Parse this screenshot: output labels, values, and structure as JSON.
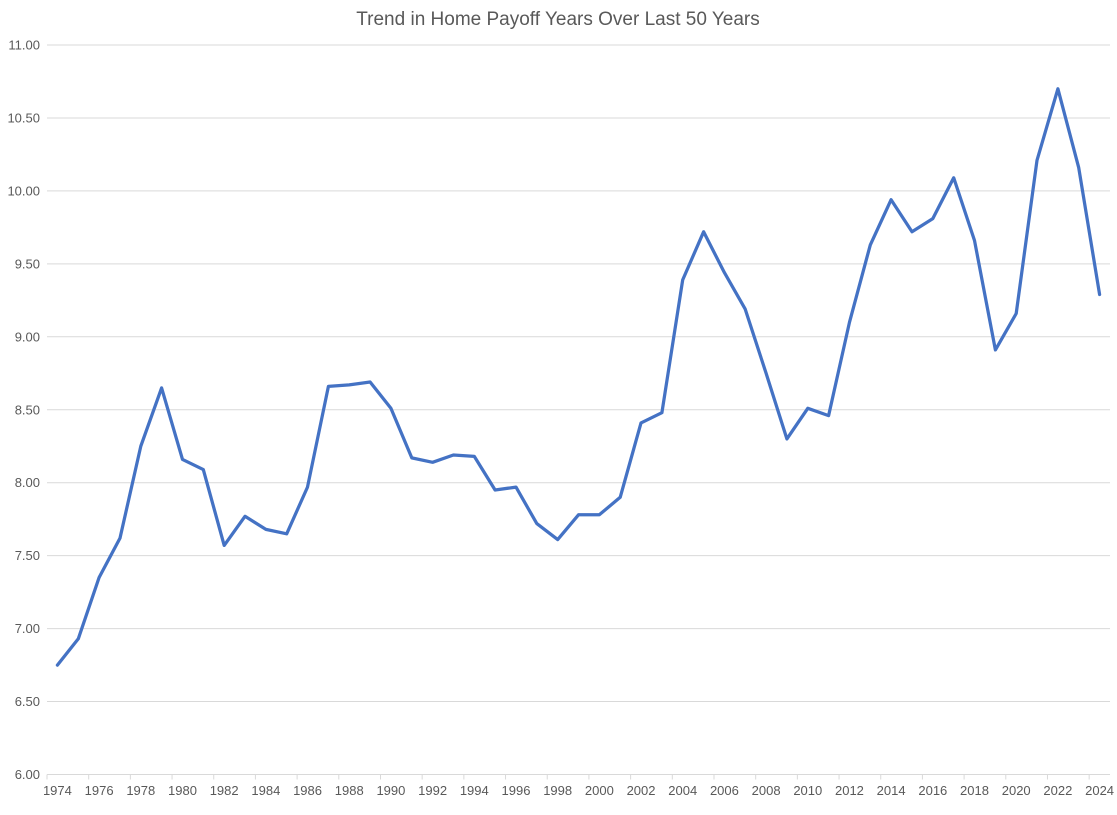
{
  "chart_data": {
    "type": "line",
    "title": "Trend in Home Payoff Years Over Last 50 Years",
    "xlabel": "",
    "ylabel": "",
    "x": [
      1974,
      1975,
      1976,
      1977,
      1978,
      1979,
      1980,
      1981,
      1982,
      1983,
      1984,
      1985,
      1986,
      1987,
      1988,
      1989,
      1990,
      1991,
      1992,
      1993,
      1994,
      1995,
      1996,
      1997,
      1998,
      1999,
      2000,
      2001,
      2002,
      2003,
      2004,
      2005,
      2006,
      2007,
      2008,
      2009,
      2010,
      2011,
      2012,
      2013,
      2014,
      2015,
      2016,
      2017,
      2018,
      2019,
      2020,
      2021,
      2022,
      2023,
      2024
    ],
    "values": [
      6.75,
      6.93,
      7.35,
      7.62,
      8.25,
      8.65,
      8.16,
      8.09,
      7.57,
      7.77,
      7.68,
      7.65,
      7.97,
      8.66,
      8.67,
      8.69,
      8.51,
      8.17,
      8.14,
      8.19,
      8.18,
      7.95,
      7.97,
      7.72,
      7.61,
      7.78,
      7.78,
      7.9,
      8.41,
      8.48,
      9.39,
      9.72,
      9.44,
      9.19,
      8.75,
      8.3,
      8.51,
      8.46,
      9.1,
      9.63,
      9.94,
      9.72,
      9.81,
      10.09,
      9.66,
      8.91,
      9.16,
      10.21,
      10.7,
      10.16,
      9.29
    ],
    "ylim": [
      6.0,
      11.0
    ],
    "ytick_step": 0.5,
    "yticks": [
      "11.00",
      "10.50",
      "10.00",
      "9.50",
      "9.00",
      "8.50",
      "8.00",
      "7.50",
      "7.00",
      "6.50",
      "6.00"
    ],
    "xticks": [
      1974,
      1976,
      1978,
      1980,
      1982,
      1984,
      1986,
      1988,
      1990,
      1992,
      1994,
      1996,
      1998,
      2000,
      2002,
      2004,
      2006,
      2008,
      2010,
      2012,
      2014,
      2016,
      2018,
      2020,
      2022,
      2024
    ],
    "grid": true,
    "legend": false,
    "colors": {
      "line": "#4472C4",
      "grid": "#D9D9D9",
      "axis": "#D9D9D9",
      "text": "#595959",
      "background": "#FFFFFF"
    }
  }
}
